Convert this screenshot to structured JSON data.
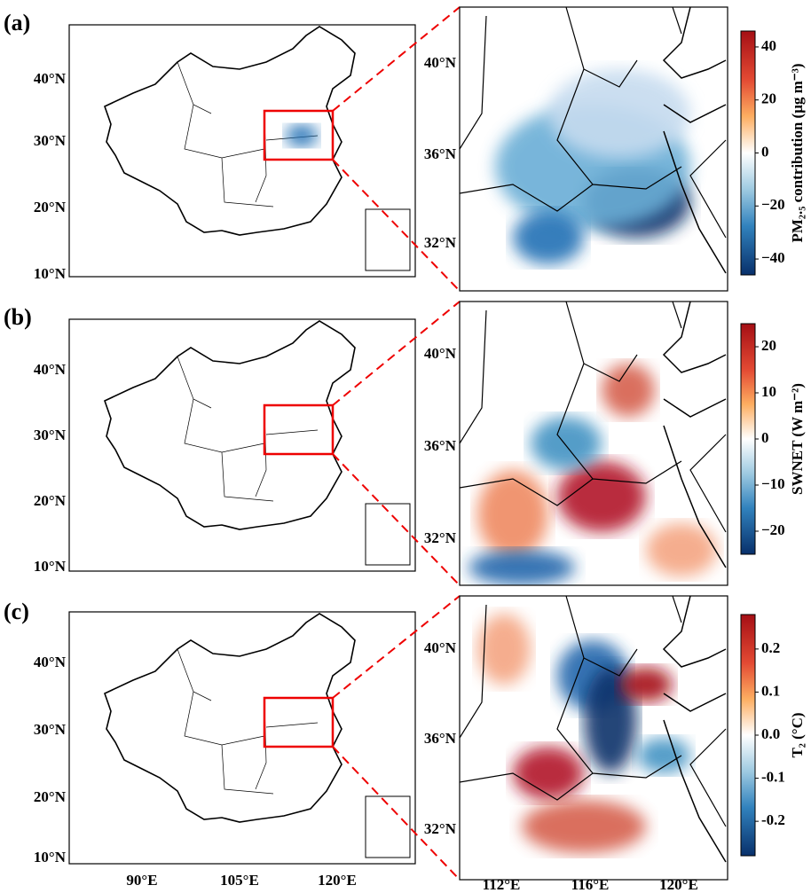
{
  "panels": [
    {
      "label": "(a)",
      "map_lat_labels": [
        "40°N",
        "30°N",
        "20°N",
        "10°N"
      ],
      "zoom_lat_labels": [
        "40°N",
        "36°N",
        "32°N"
      ],
      "colorbar": {
        "label": "PM₂.₅ contribution (μg m⁻³)",
        "range": [
          -46,
          46
        ],
        "ticks": [
          40,
          20,
          0,
          {
            "value": -20,
            "label": "−20"
          },
          {
            "value": -40,
            "label": "−40"
          }
        ]
      }
    },
    {
      "label": "(b)",
      "map_lat_labels": [
        "40°N",
        "30°N",
        "20°N",
        "10°N"
      ],
      "zoom_lat_labels": [
        "40°N",
        "36°N",
        "32°N"
      ],
      "colorbar": {
        "label": "SWNET (W m⁻²)",
        "range": [
          -25,
          25
        ],
        "ticks": [
          20,
          10,
          0,
          {
            "value": -10,
            "label": "−10"
          },
          {
            "value": -20,
            "label": "−20"
          }
        ]
      }
    },
    {
      "label": "(c)",
      "map_lat_labels": [
        "40°N",
        "30°N",
        "20°N",
        "10°N"
      ],
      "zoom_lat_labels": [
        "40°N",
        "36°N",
        "32°N"
      ],
      "colorbar": {
        "label": "T₂ (°C)",
        "range": [
          -0.28,
          0.28
        ],
        "ticks": [
          0.2,
          0.1,
          {
            "value": 0,
            "label": "0.0"
          },
          {
            "value": -0.1,
            "label": "-0.1"
          },
          {
            "value": -0.2,
            "label": "-0.2"
          }
        ]
      }
    }
  ],
  "map_lon_labels": [
    "90°E",
    "105°E",
    "120°E"
  ],
  "zoom_lon_labels": [
    "112°E",
    "116°E",
    "120°E"
  ]
}
